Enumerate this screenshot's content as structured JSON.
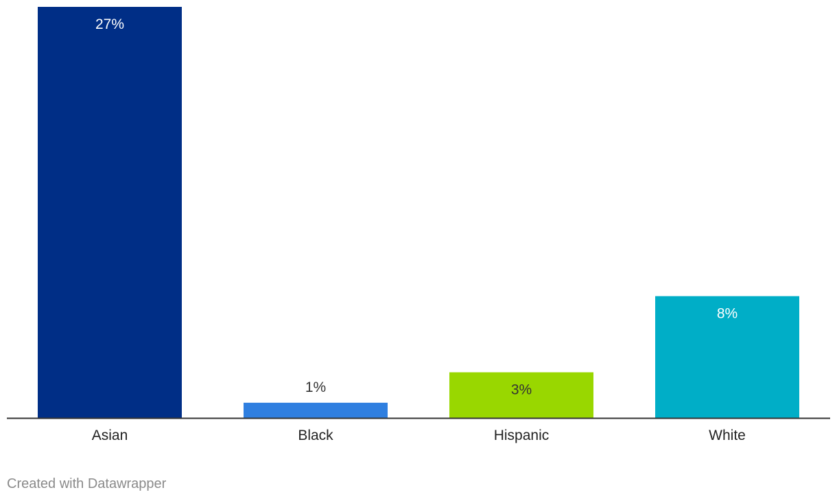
{
  "chart_data": {
    "type": "bar",
    "categories": [
      "Asian",
      "Black",
      "Hispanic",
      "White"
    ],
    "values": [
      27,
      1,
      3,
      8
    ],
    "value_labels": [
      "27%",
      "1%",
      "3%",
      "8%"
    ],
    "colors": [
      "#002e86",
      "#2f7fe0",
      "#99d700",
      "#00aec7"
    ],
    "label_colors": [
      "#ffffff",
      "#333333",
      "#333333",
      "#ffffff"
    ],
    "label_position": [
      "inside",
      "above",
      "inside",
      "inside"
    ],
    "ylim": [
      0,
      27
    ],
    "grid": false,
    "title": "",
    "xlabel": "",
    "ylabel": ""
  },
  "footer": {
    "credit": "Created with Datawrapper"
  },
  "colors": {
    "axis": "#333333",
    "tick_label": "#222222",
    "credit": "#8a8a8a"
  }
}
